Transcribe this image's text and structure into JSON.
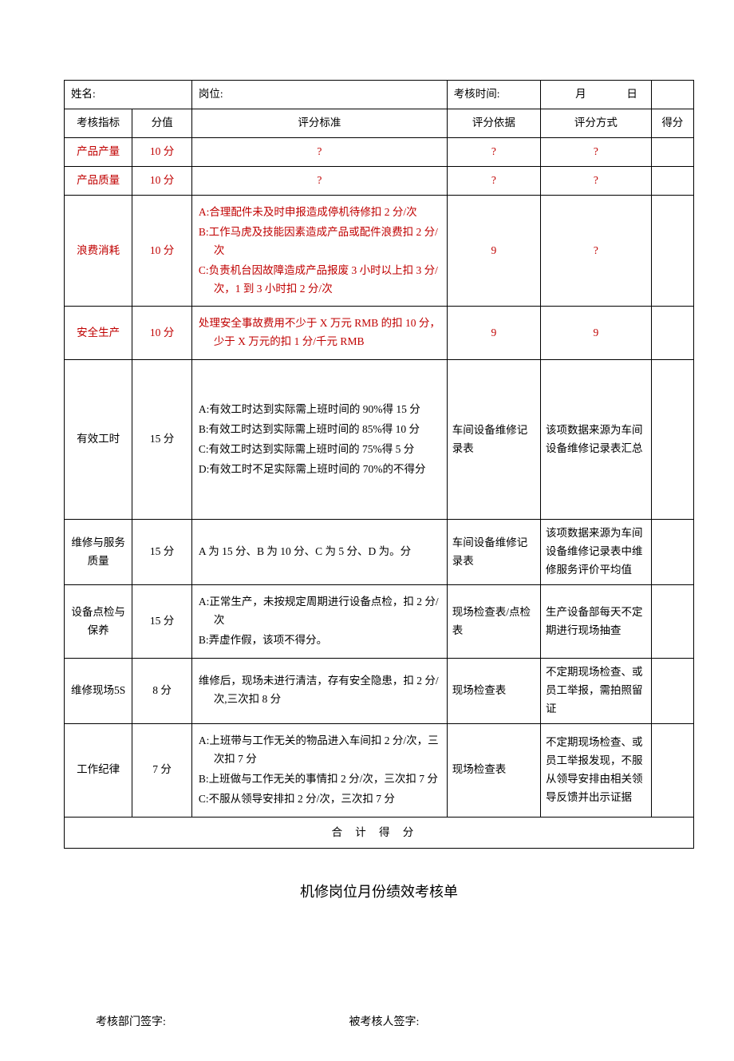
{
  "header": {
    "name_label": "姓名:",
    "position_label": "岗位:",
    "time_label": "考核时间:",
    "month_label": "月",
    "day_label": "日"
  },
  "columns": {
    "indicator": "考核指标",
    "points": "分值",
    "criteria": "评分标准",
    "basis": "评分依据",
    "method": "评分方式",
    "score": "得分"
  },
  "rows": [
    {
      "indicator": "产品产量",
      "indicator_color": "#c00000",
      "points": "10 分",
      "points_color": "#c00000",
      "criteria_items": [
        "?"
      ],
      "criteria_color": "#c00000",
      "basis": "?",
      "basis_color": "#c00000",
      "method": "?",
      "method_color": "#c00000",
      "criteria_align": "center"
    },
    {
      "indicator": "产品质量",
      "indicator_color": "#c00000",
      "points": "10 分",
      "points_color": "#c00000",
      "criteria_items": [
        "?"
      ],
      "criteria_color": "#c00000",
      "basis": "?",
      "basis_color": "#c00000",
      "method": "?",
      "method_color": "#c00000",
      "criteria_align": "center"
    },
    {
      "indicator": "浪费消耗",
      "indicator_color": "#c00000",
      "points": "10 分",
      "points_color": "#c00000",
      "criteria_items": [
        "A:合理配件未及时申报造成停机待修扣 2 分/次",
        "B:工作马虎及技能因素造成产品或配件浪费扣 2 分/次",
        "C:负责机台因故障造成产品报废 3 小时以上扣 3 分/次，1 到 3 小时扣 2 分/次"
      ],
      "criteria_color": "#c00000",
      "basis": "9",
      "basis_color": "#c00000",
      "method": "?",
      "method_color": "#c00000",
      "criteria_align": "left"
    },
    {
      "indicator": "安全生产",
      "indicator_color": "#c00000",
      "points": "10 分",
      "points_color": "#c00000",
      "criteria_items": [
        "处理安全事故费用不少于 X 万元 RMB 的扣 10 分，少于 X 万元的扣 1 分/千元 RMB"
      ],
      "criteria_color": "#c00000",
      "basis": "9",
      "basis_color": "#c00000",
      "method": "9",
      "method_color": "#c00000",
      "criteria_align": "left"
    },
    {
      "indicator": "有效工时",
      "indicator_color": "#000000",
      "points": "15 分",
      "points_color": "#000000",
      "criteria_items": [
        "A:有效工时达到实际需上班时间的 90%得 15 分",
        "B:有效工时达到实际需上班时间的 85%得 10 分",
        "C:有效工时达到实际需上班时间的 75%得 5 分",
        "D:有效工时不足实际需上班时间的 70%的不得分"
      ],
      "criteria_color": "#000000",
      "basis": "车间设备维修记录表",
      "basis_color": "#000000",
      "method": "该项数据来源为车间设备维修记录表汇总",
      "method_color": "#000000",
      "criteria_align": "left",
      "extra_height": true
    },
    {
      "indicator": "维修与服务质量",
      "indicator_color": "#000000",
      "points": "15 分",
      "points_color": "#000000",
      "criteria_items": [
        "A 为 15 分、B 为 10 分、C 为 5 分、D 为。分"
      ],
      "criteria_color": "#000000",
      "basis": "车间设备维修记录表",
      "basis_color": "#000000",
      "method": "该项数据来源为车间设备维修记录表中维修服务评价平均值",
      "method_color": "#000000",
      "criteria_align": "left"
    },
    {
      "indicator": "设备点检与保养",
      "indicator_color": "#000000",
      "points": "15 分",
      "points_color": "#000000",
      "criteria_items": [
        "A:正常生产，未按规定周期进行设备点检，扣 2 分/次",
        "B:弄虚作假，该项不得分。"
      ],
      "criteria_color": "#000000",
      "basis": "现场检查表/点检表",
      "basis_color": "#000000",
      "method": "生产设备部每天不定期进行现场抽查",
      "method_color": "#000000",
      "criteria_align": "left"
    },
    {
      "indicator": "维修现场5S",
      "indicator_color": "#000000",
      "points": "8 分",
      "points_color": "#000000",
      "criteria_items": [
        "维修后，现场未进行清洁，存有安全隐患，扣 2 分/次,三次扣 8 分"
      ],
      "criteria_color": "#000000",
      "basis": "现场检查表",
      "basis_color": "#000000",
      "method": "不定期现场检查、或员工举报，需拍照留证",
      "method_color": "#000000",
      "criteria_align": "left"
    },
    {
      "indicator": "工作纪律",
      "indicator_color": "#000000",
      "points": "7 分",
      "points_color": "#000000",
      "criteria_items": [
        "A:上班带与工作无关的物品进入车间扣 2 分/次，三次扣 7 分",
        "B:上班做与工作无关的事情扣 2 分/次，三次扣 7 分",
        "C:不服从领导安排扣 2 分/次，三次扣 7 分"
      ],
      "criteria_color": "#000000",
      "basis": "现场检查表",
      "basis_color": "#000000",
      "method": "不定期现场检查、或员工举报发现，不服从领导安排由相关领导反馈并出示证据",
      "method_color": "#000000",
      "criteria_align": "left"
    }
  ],
  "total_label": "合计得分",
  "title_below": "机修岗位月份绩效考核单",
  "signatures": {
    "dept": "考核部门签字:",
    "person": "被考核人签字:"
  }
}
